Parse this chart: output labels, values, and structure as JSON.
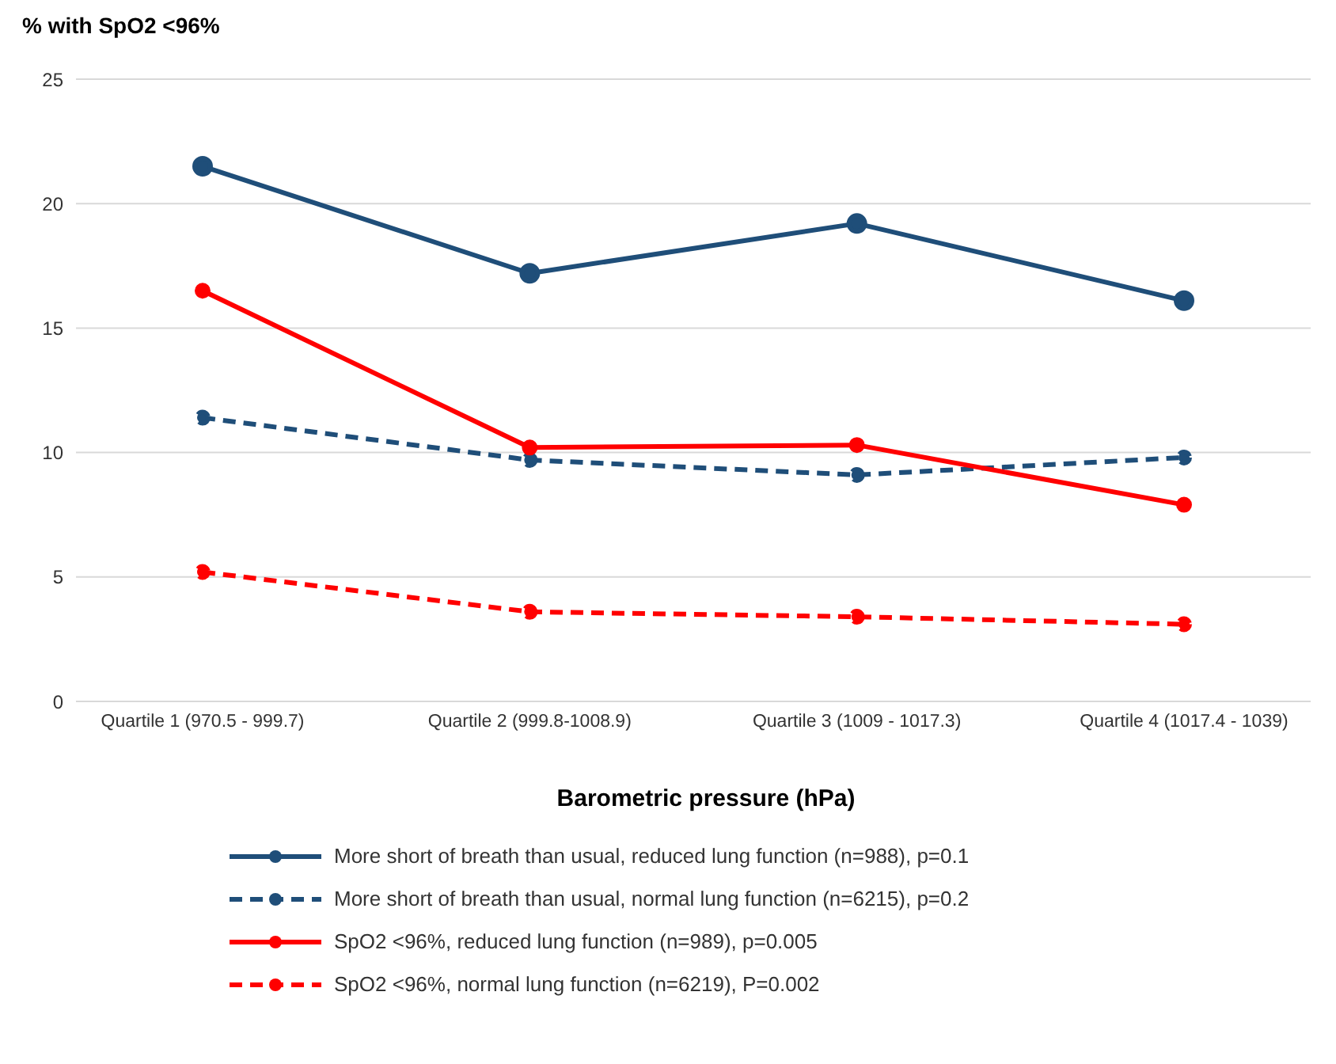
{
  "chart_data": {
    "type": "line",
    "ylabel": "% with SpO2 <96%",
    "xlabel": "Barometric pressure  (hPa)",
    "categories": [
      "Quartile 1 (970.5 - 999.7)",
      "Quartile 2 (999.8-1008.9)",
      "Quartile 3 (1009 - 1017.3)",
      "Quartile 4 (1017.4 - 1039)"
    ],
    "ylim": [
      0,
      25
    ],
    "yticks": [
      0,
      5,
      10,
      15,
      20,
      25
    ],
    "grid": "y",
    "legend": "bottom",
    "marker": "circle",
    "series": [
      {
        "name": "More short of breath than usual, reduced lung function (n=988), p=0.1",
        "color": "#1f4e79",
        "line_style": "solid",
        "values": [
          21.5,
          17.2,
          19.2,
          16.1
        ]
      },
      {
        "name": "More short of breath than usual, normal lung function (n=6215), p=0.2",
        "color": "#1f4e79",
        "line_style": "dashed",
        "values": [
          11.4,
          9.7,
          9.1,
          9.8
        ]
      },
      {
        "name": "SpO2 <96%, reduced lung function (n=989), p=0.005",
        "color": "#ff0000",
        "line_style": "solid",
        "values": [
          16.5,
          10.2,
          10.3,
          7.9
        ]
      },
      {
        "name": "SpO2 <96%, normal lung function (n=6219), P=0.002",
        "color": "#ff0000",
        "line_style": "dashed",
        "values": [
          5.2,
          3.6,
          3.4,
          3.1
        ]
      }
    ]
  }
}
